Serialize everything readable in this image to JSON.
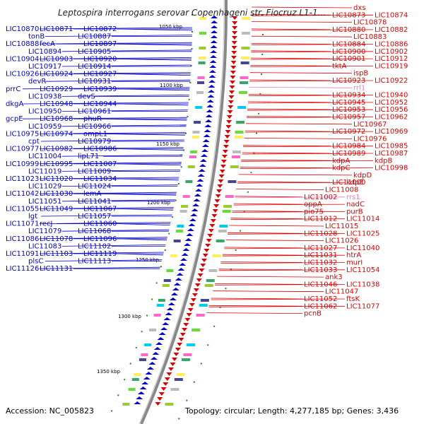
{
  "title": "Leptospira interrogans serovar Copenhageni str. Fiocruz L1-1…",
  "footer": {
    "accession": "Accession: NC_005823",
    "summary": "Topology: circular; Length: 4,277,185 bp; Genes: 3,436"
  },
  "colors": {
    "left_strand": "#0000cc",
    "right_strand": "#dd0000",
    "rna": "#e080c0",
    "tick": "#228822",
    "backbone": "#888888"
  },
  "ticks": [
    "1050 kbp",
    "1100 kbp",
    "1150 kbp",
    "1200 kbp",
    "1250 kbp",
    "1300 kbp",
    "1350 kbp"
  ],
  "left_labels": [
    "LIC10870",
    "LIC10871",
    "LIC10872",
    "tonB",
    "LIC10887",
    "LIC10888",
    "fecA",
    "LIC10897",
    "LIC10894",
    "LIC10905",
    "LIC10904",
    "LIC10903",
    "LIC10920",
    "LIC10917",
    "LIC10914",
    "LIC10926",
    "LIC10924",
    "LIC10927",
    "devR",
    "LIC10931",
    "prrC",
    "LIC10929",
    "LIC10939",
    "LIC10938",
    "devS",
    "dkgA",
    "LIC10948",
    "LIC10944",
    "LIC10950",
    "LIC10961",
    "gcpE",
    "LIC10968",
    "phuR",
    "LIC10959",
    "LIC10966",
    "LIC10975",
    "LIC10974",
    "ompL1",
    "cpt",
    "LIC10979",
    "LIC10977",
    "LIC10982",
    "LIC10986",
    "LIC11004",
    "lipL71",
    "LIC10999",
    "LIC10995",
    "LIC11007",
    "LIC11019",
    "LIC11009",
    "LIC11023",
    "LIC11020",
    "LIC11034",
    "LIC11029",
    "LIC11024",
    "LIC11042",
    "LIC11030",
    "lemA",
    "LIC11051",
    "LIC11041",
    "LIC11055",
    "LIC11049",
    "LIC11067",
    "lgt",
    "LIC11057",
    "LIC11071",
    "recJ",
    "LIC11060",
    "LIC11079",
    "LIC11068",
    "LIC11086",
    "LIC11078",
    "LIC11096",
    "LIC11083",
    "LIC11102",
    "LIC11091",
    "LIC11103",
    "LIC11119",
    "plsC",
    "LIC11113",
    "LIC11126",
    "LIC11131"
  ],
  "right_labels": [
    "dxs",
    "LIC10873",
    "LIC10874",
    "LIC10878",
    "LIC10880",
    "LIC10882",
    "LIC10883",
    "LIC10884",
    "LIC10886",
    "LIC10900",
    "LIC10902",
    "LIC10901",
    "LIC10912",
    "tktA",
    "LIC10919",
    "ispB",
    "LIC10923",
    "LIC10922",
    "rrl1",
    "LIC10934",
    "LIC10940",
    "LIC10945",
    "LIC10952",
    "LIC10953",
    "LIC10956",
    "LIC10957",
    "LIC10962",
    "LIC10967",
    "LIC10972",
    "LIC10969",
    "LIC10976",
    "LIC10984",
    "LIC10985",
    "LIC10989",
    "LIC10987",
    "kdpA",
    "kdpB",
    "kdpC",
    "LIC10998",
    "kdpD",
    "LIC11000",
    "kdpE",
    "LIC11008",
    "LIC11002",
    "rrs1",
    "oppA",
    "nadC",
    "pio75",
    "purB",
    "LIC11012",
    "LIC11014",
    "LIC11015",
    "LIC11028",
    "LIC11025",
    "LIC11026",
    "LIC11027",
    "LIC11040",
    "LIC11031",
    "htrA",
    "LIC11032",
    "murI",
    "LIC11033",
    "LIC11054",
    "ank3",
    "LIC11046",
    "LIC11038",
    "LIC11047",
    "LIC11052",
    "ftsK",
    "LIC11062",
    "LIC11077",
    "pcnB"
  ]
}
